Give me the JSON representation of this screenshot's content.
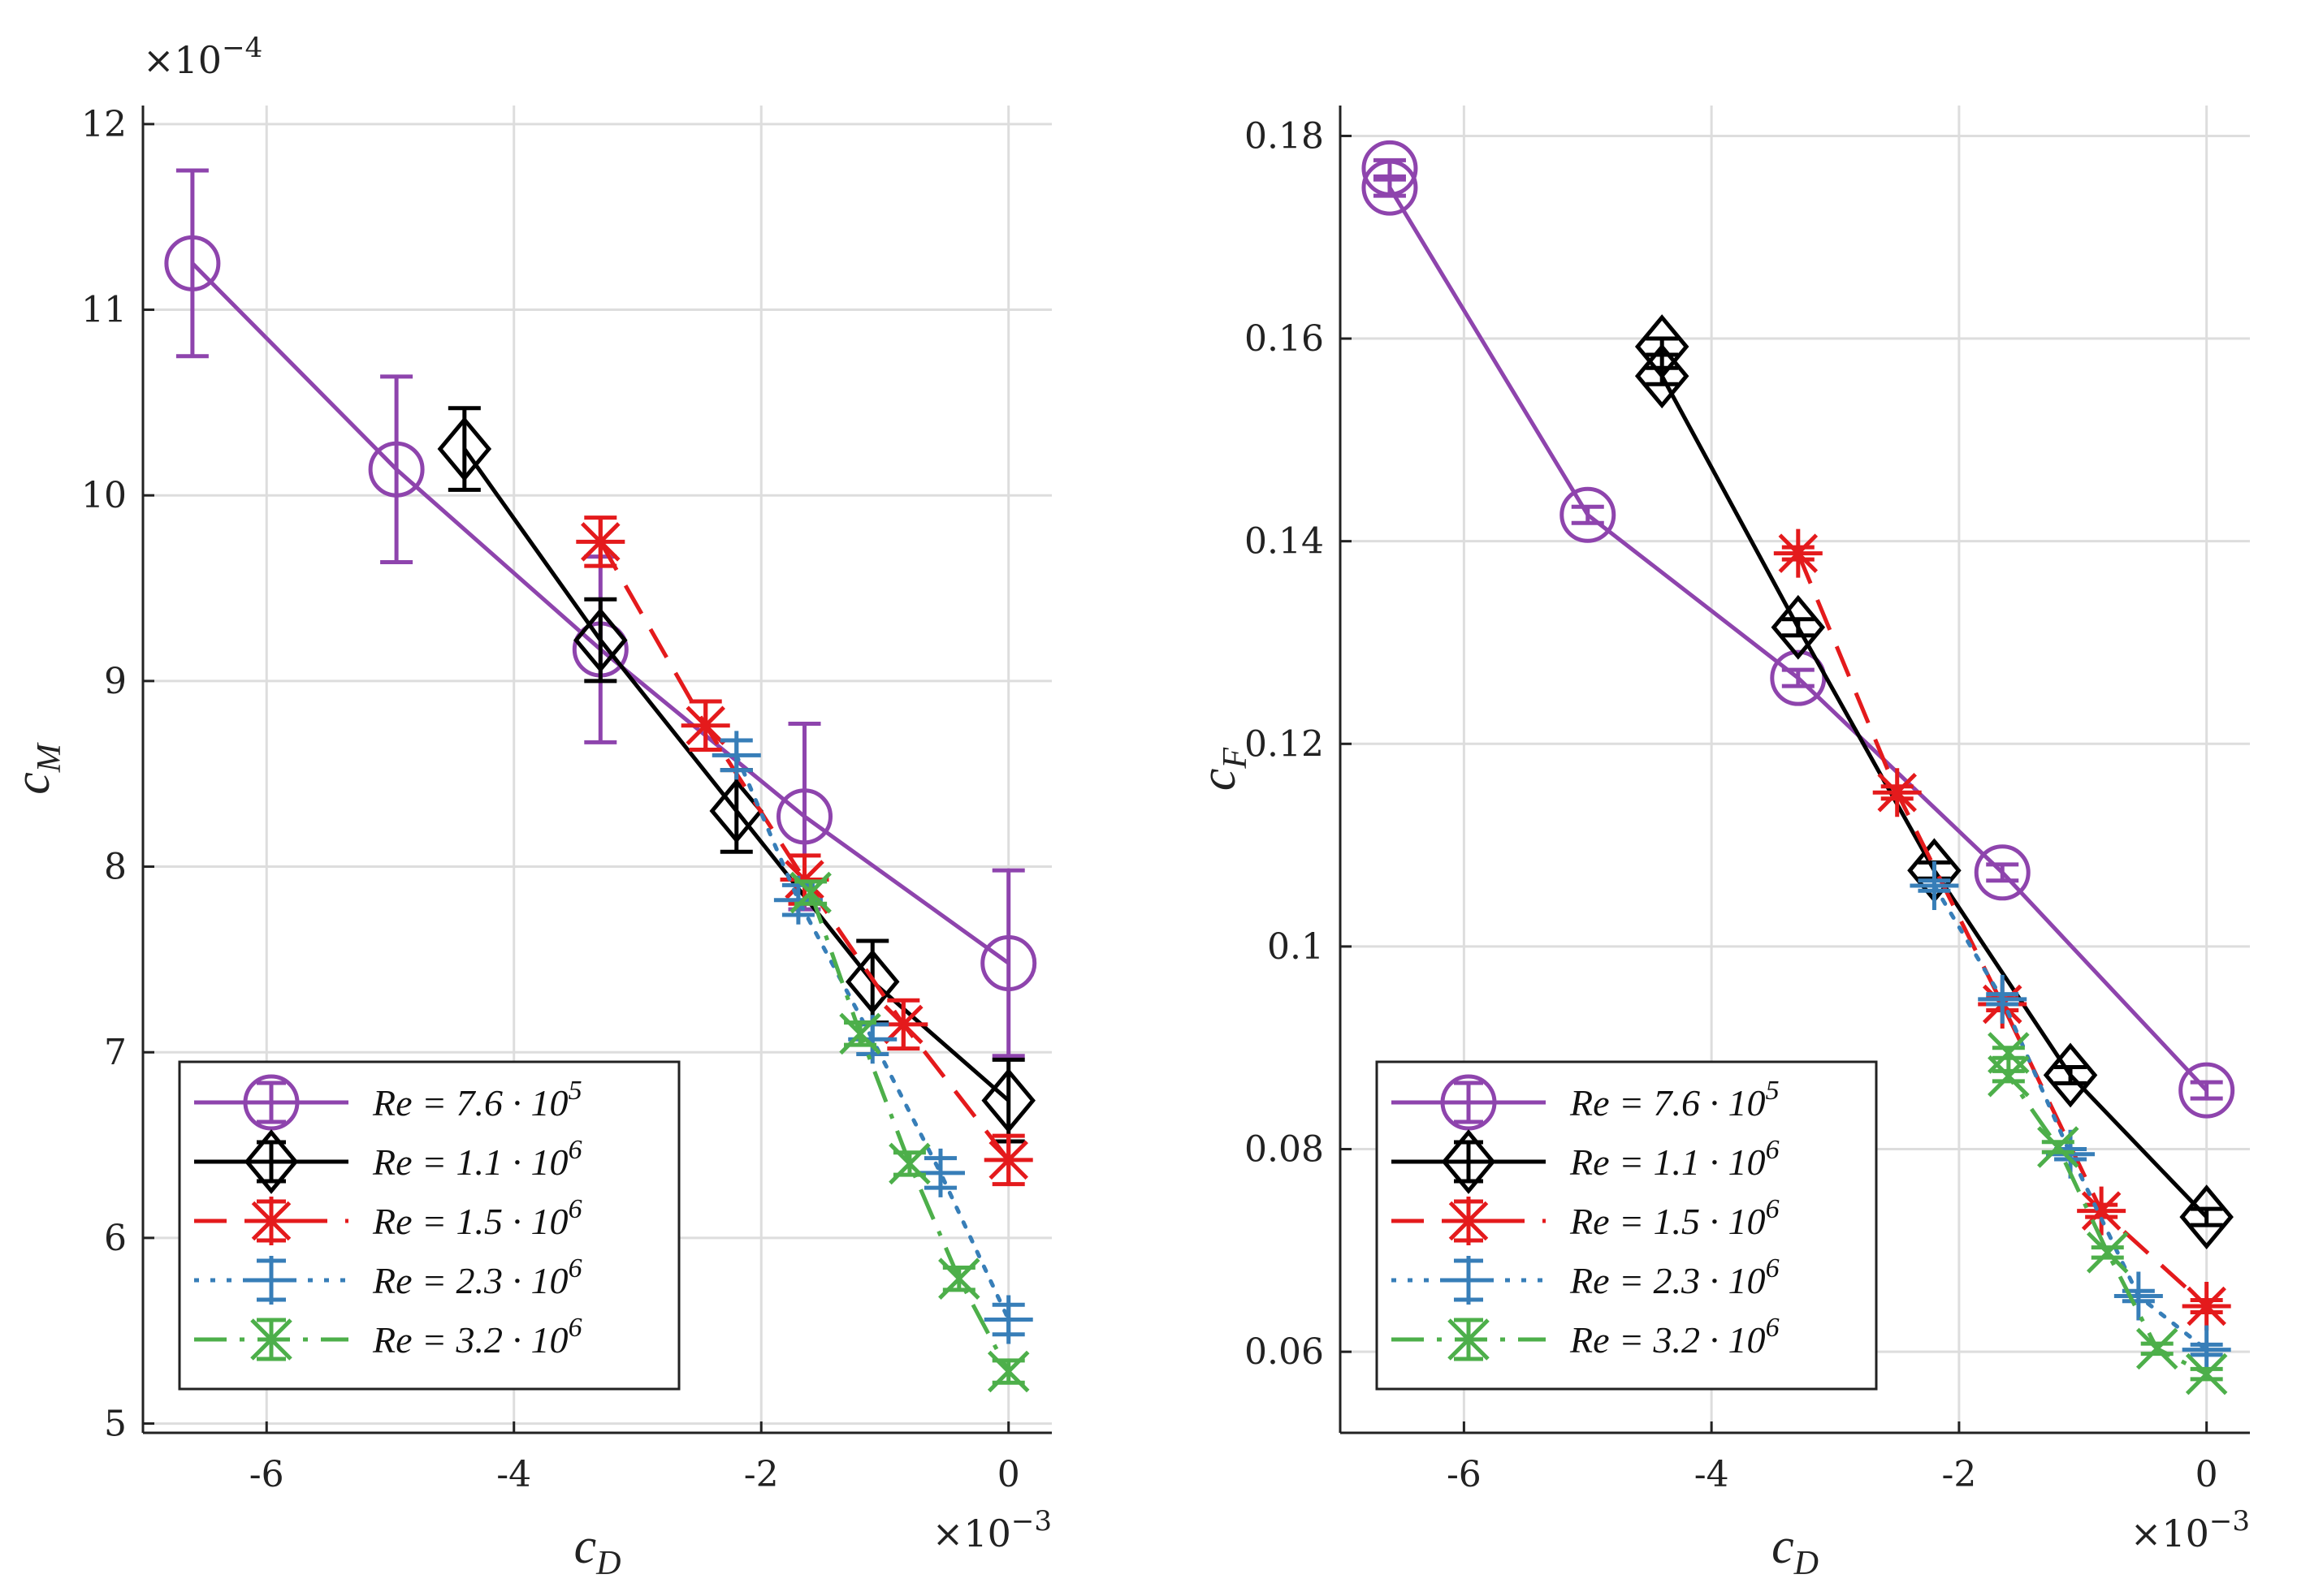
{
  "chart_data": [
    {
      "type": "line",
      "panel": "left",
      "ylabel": "c_M",
      "xlabel": "c_D",
      "ylabel_main": "c",
      "ylabel_sub": "M",
      "xlabel_main": "c",
      "xlabel_sub": "D",
      "x_exponent_base": "×10",
      "x_exponent": "−3",
      "y_exponent_base": "×10",
      "y_exponent": "−4",
      "xlim": [
        -7,
        0.35
      ],
      "ylim": [
        4.95,
        12.1
      ],
      "xticks": [
        -6,
        -4,
        -2,
        0
      ],
      "xtick_labels": [
        "-6",
        "-4",
        "-2",
        "0"
      ],
      "yticks": [
        5,
        6,
        7,
        8,
        9,
        10,
        11,
        12
      ],
      "ytick_labels": [
        "5",
        "6",
        "7",
        "8",
        "9",
        "10",
        "11",
        "12"
      ],
      "legend_location": "bottom-left",
      "series": [
        {
          "name": "Re = 7.6 · 10^5",
          "label_main": "Re = 7.6 · 10",
          "label_exp": "5",
          "color": "#8e44ad",
          "linestyle": "solid",
          "marker": "circle",
          "x": [
            -6.6,
            -4.95,
            -3.3,
            -1.65,
            0
          ],
          "y": [
            11.25,
            10.14,
            9.17,
            8.27,
            7.48
          ],
          "err": [
            0.5,
            0.5,
            0.5,
            0.5,
            0.5
          ]
        },
        {
          "name": "Re = 1.1 · 10^6",
          "label_main": "Re = 1.1 · 10",
          "label_exp": "6",
          "color": "#000000",
          "linestyle": "solid",
          "marker": "diamond",
          "x": [
            -4.4,
            -3.3,
            -2.2,
            -1.1,
            0
          ],
          "y": [
            10.25,
            9.22,
            8.3,
            7.38,
            6.74
          ],
          "err": [
            0.22,
            0.22,
            0.22,
            0.22,
            0.22
          ]
        },
        {
          "name": "Re = 1.5 · 10^6",
          "label_main": "Re = 1.5 · 10",
          "label_exp": "6",
          "color": "#e41a1c",
          "linestyle": "dashed",
          "marker": "asterisk",
          "x": [
            -3.3,
            -2.45,
            -1.65,
            -0.85,
            0
          ],
          "y": [
            9.75,
            8.76,
            7.93,
            7.15,
            6.42
          ],
          "err": [
            0.13,
            0.13,
            0.13,
            0.13,
            0.13
          ]
        },
        {
          "name": "Re = 2.3 · 10^6",
          "label_main": "Re = 2.3 · 10",
          "label_exp": "6",
          "color": "#377eb8",
          "linestyle": "dotted",
          "marker": "plus",
          "x": [
            -2.2,
            -1.7,
            -1.1,
            -0.55,
            0
          ],
          "y": [
            8.6,
            7.82,
            7.07,
            6.35,
            5.56
          ],
          "err": [
            0.08,
            0.08,
            0.08,
            0.08,
            0.08
          ]
        },
        {
          "name": "Re = 3.2 · 10^6",
          "label_main": "Re = 3.2 · 10",
          "label_exp": "6",
          "color": "#4daf4a",
          "linestyle": "dashdot",
          "marker": "x",
          "x": [
            -1.6,
            -1.2,
            -0.8,
            -0.4,
            0
          ],
          "y": [
            7.86,
            7.1,
            6.4,
            5.78,
            5.28
          ],
          "err": [
            0.06,
            0.06,
            0.06,
            0.06,
            0.06
          ]
        }
      ]
    },
    {
      "type": "line",
      "panel": "right",
      "ylabel": "c_F",
      "xlabel": "c_D",
      "ylabel_main": "c",
      "ylabel_sub": "F",
      "xlabel_main": "c",
      "xlabel_sub": "D",
      "x_exponent_base": "×10",
      "x_exponent": "−3",
      "xlim": [
        -7,
        0.35
      ],
      "ylim": [
        0.052,
        0.183
      ],
      "xticks": [
        -6,
        -4,
        -2,
        0
      ],
      "xtick_labels": [
        "-6",
        "-4",
        "-2",
        "0"
      ],
      "yticks": [
        0.06,
        0.08,
        0.1,
        0.12,
        0.14,
        0.16,
        0.18
      ],
      "ytick_labels": [
        "0.06",
        "0.08",
        "0.1",
        "0.12",
        "0.14",
        "0.16",
        "0.18"
      ],
      "legend_location": "bottom-left",
      "series": [
        {
          "name": "Re = 7.6 · 10^5",
          "label_main": "Re = 7.6 · 10",
          "label_exp": "5",
          "color": "#8e44ad",
          "linestyle": "solid",
          "marker": "circle",
          "x": [
            -6.6,
            -6.6,
            -5.0,
            -3.3,
            -1.65,
            0
          ],
          "y": [
            0.1768,
            0.1749,
            0.1426,
            0.1265,
            0.1073,
            0.0858
          ],
          "err": [
            0.0008,
            0.0008,
            0.0008,
            0.0008,
            0.0008,
            0.0008
          ]
        },
        {
          "name": "Re = 1.1 · 10^6",
          "label_main": "Re = 1.1 · 10",
          "label_exp": "6",
          "color": "#000000",
          "linestyle": "solid",
          "marker": "diamond",
          "x": [
            -4.4,
            -4.4,
            -3.3,
            -2.2,
            -1.1,
            0
          ],
          "y": [
            0.1592,
            0.1563,
            0.1315,
            0.1075,
            0.0873,
            0.0733
          ],
          "err": [
            0.0008,
            0.0008,
            0.0008,
            0.0008,
            0.0008,
            0.0008
          ]
        },
        {
          "name": "Re = 1.5 · 10^6",
          "label_main": "Re = 1.5 · 10",
          "label_exp": "6",
          "color": "#e41a1c",
          "linestyle": "dashed",
          "marker": "asterisk",
          "x": [
            -3.3,
            -2.5,
            -1.65,
            -0.85,
            0
          ],
          "y": [
            0.1388,
            0.1152,
            0.0943,
            0.0739,
            0.0645
          ],
          "err": [
            0.0006,
            0.0006,
            0.0006,
            0.0006,
            0.0006
          ]
        },
        {
          "name": "Re = 2.3 · 10^6",
          "label_main": "Re = 2.3 · 10",
          "label_exp": "6",
          "color": "#377eb8",
          "linestyle": "dotted",
          "marker": "plus",
          "x": [
            -2.2,
            -1.65,
            -1.1,
            -0.55,
            0
          ],
          "y": [
            0.106,
            0.0948,
            0.0795,
            0.0655,
            0.0602
          ],
          "err": [
            0.0005,
            0.0005,
            0.0005,
            0.0005,
            0.0005
          ]
        },
        {
          "name": "Re = 3.2 · 10^6",
          "label_main": "Re = 3.2 · 10",
          "label_exp": "6",
          "color": "#4daf4a",
          "linestyle": "dashdot",
          "marker": "x",
          "x": [
            -1.6,
            -1.6,
            -1.2,
            -0.8,
            -0.4,
            0
          ],
          "y": [
            0.0895,
            0.0872,
            0.0802,
            0.0698,
            0.0603,
            0.0578
          ],
          "err": [
            0.0005,
            0.0005,
            0.0005,
            0.0005,
            0.0005,
            0.0005
          ]
        }
      ]
    }
  ]
}
